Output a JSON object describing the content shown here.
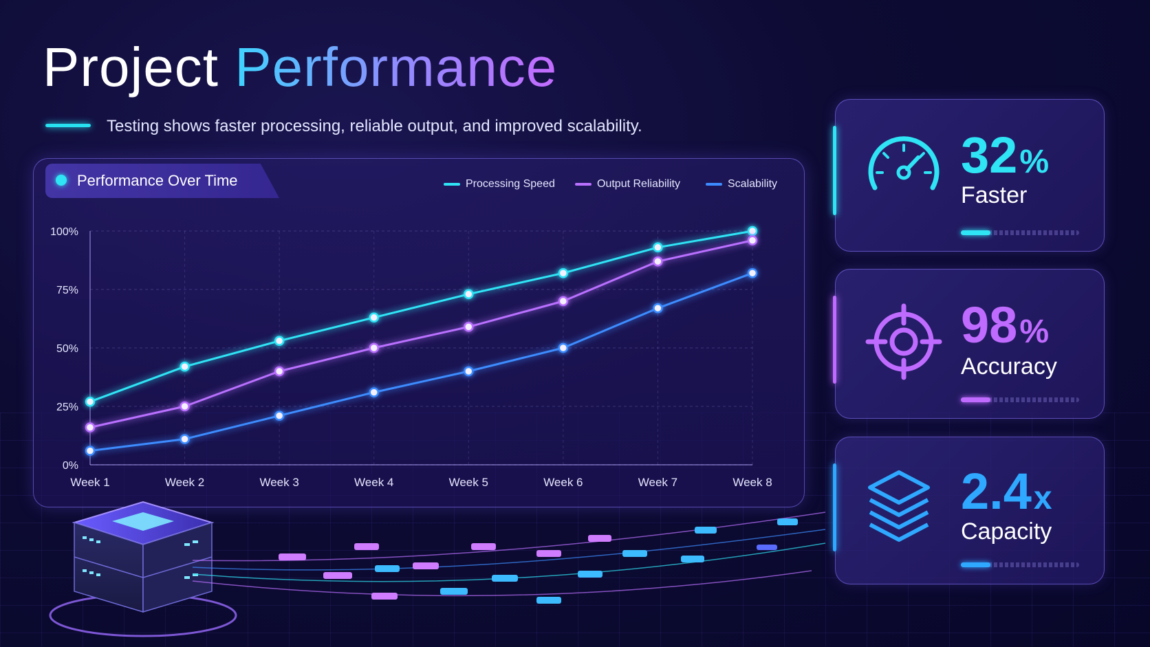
{
  "title": {
    "word1": "Project",
    "word2": "Performance"
  },
  "subtitle": "Testing shows faster processing, reliable output, and improved scalability.",
  "chart_panel": {
    "tab_label": "Performance Over Time"
  },
  "colors": {
    "processing": "#2fe4f5",
    "reliability": "#b970ff",
    "scalability": "#3d8cff"
  },
  "chart_data": {
    "type": "line",
    "title": "Performance Over Time",
    "categories": [
      "Week 1",
      "Week 2",
      "Week 3",
      "Week 4",
      "Week 5",
      "Week 6",
      "Week 7",
      "Week 8"
    ],
    "series": [
      {
        "name": "Processing Speed",
        "values": [
          27,
          42,
          53,
          63,
          73,
          82,
          93,
          100
        ]
      },
      {
        "name": "Output Reliability",
        "values": [
          16,
          25,
          40,
          50,
          59,
          70,
          87,
          96
        ]
      },
      {
        "name": "Scalability",
        "values": [
          6,
          11,
          21,
          31,
          40,
          50,
          67,
          82
        ]
      }
    ],
    "y_ticks": [
      "0%",
      "25%",
      "50%",
      "75%",
      "100%"
    ],
    "ylim": [
      0,
      100
    ],
    "grid": true,
    "legend": "top-right"
  },
  "metrics": [
    {
      "value": "32",
      "unit": "%",
      "label": "Faster",
      "icon": "speedometer-icon",
      "color": "#2fe4f5",
      "progress": 0.25
    },
    {
      "value": "98",
      "unit": "%",
      "label": "Accuracy",
      "icon": "target-icon",
      "color": "#c06bff",
      "progress": 0.25
    },
    {
      "value": "2.4",
      "unit": "x",
      "label": "Capacity",
      "icon": "layers-icon",
      "color": "#2fa8ff",
      "progress": 0.25
    }
  ]
}
